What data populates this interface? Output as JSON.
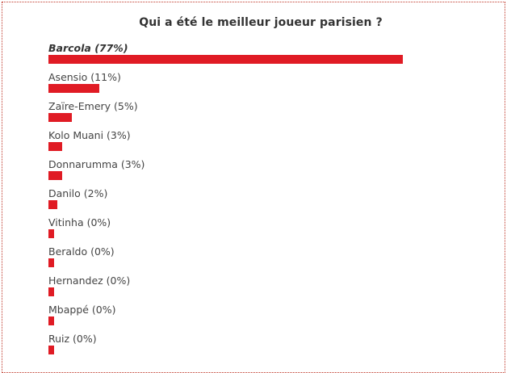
{
  "poll": {
    "title": "Qui a été le meilleur joueur parisien ?",
    "bar_color": "#e01b24",
    "options": [
      {
        "label": "Barcola (77%)",
        "percent": 77,
        "winner": true
      },
      {
        "label": "Asensio (11%)",
        "percent": 11,
        "winner": false
      },
      {
        "label": "Zaïre-Emery (5%)",
        "percent": 5,
        "winner": false
      },
      {
        "label": "Kolo Muani (3%)",
        "percent": 3,
        "winner": false
      },
      {
        "label": "Donnarumma (3%)",
        "percent": 3,
        "winner": false
      },
      {
        "label": "Danilo (2%)",
        "percent": 2,
        "winner": false
      },
      {
        "label": "Vitinha (0%)",
        "percent": 0,
        "winner": false
      },
      {
        "label": "Beraldo (0%)",
        "percent": 0,
        "winner": false
      },
      {
        "label": "Hernandez (0%)",
        "percent": 0,
        "winner": false
      },
      {
        "label": "Mbappé (0%)",
        "percent": 0,
        "winner": false
      },
      {
        "label": "Ruiz (0%)",
        "percent": 0,
        "winner": false
      }
    ]
  }
}
